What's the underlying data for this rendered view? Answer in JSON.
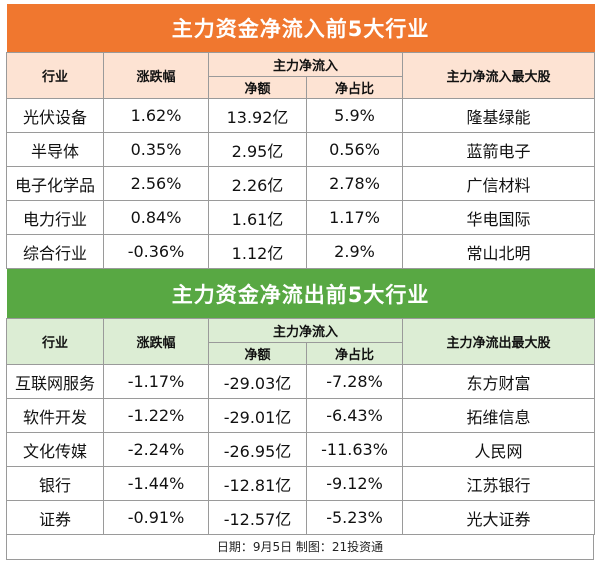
{
  "chart_data": [
    {
      "type": "table",
      "title": "主力资金净流入前5大行业",
      "headers": {
        "industry": "行业",
        "change": "涨跌幅",
        "group": "主力净流入",
        "net": "净额",
        "ratio": "净占比",
        "top_stock": "主力净流入最大股"
      },
      "rows": [
        {
          "industry": "光伏设备",
          "change": "1.62%",
          "net": "13.92亿",
          "ratio": "5.9%",
          "top_stock": "隆基绿能"
        },
        {
          "industry": "半导体",
          "change": "0.35%",
          "net": "2.95亿",
          "ratio": "0.56%",
          "top_stock": "蓝箭电子"
        },
        {
          "industry": "电子化学品",
          "change": "2.56%",
          "net": "2.26亿",
          "ratio": "2.78%",
          "top_stock": "广信材料"
        },
        {
          "industry": "电力行业",
          "change": "0.84%",
          "net": "1.61亿",
          "ratio": "1.17%",
          "top_stock": "华电国际"
        },
        {
          "industry": "综合行业",
          "change": "-0.36%",
          "net": "1.12亿",
          "ratio": "2.9%",
          "top_stock": "常山北明"
        }
      ]
    },
    {
      "type": "table",
      "title": "主力资金净流出前5大行业",
      "headers": {
        "industry": "行业",
        "change": "涨跌幅",
        "group": "主力净流入",
        "net": "净额",
        "ratio": "净占比",
        "top_stock": "主力净流出最大股"
      },
      "rows": [
        {
          "industry": "互联网服务",
          "change": "-1.17%",
          "net": "-29.03亿",
          "ratio": "-7.28%",
          "top_stock": "东方财富"
        },
        {
          "industry": "软件开发",
          "change": "-1.22%",
          "net": "-29.01亿",
          "ratio": "-6.43%",
          "top_stock": "拓维信息"
        },
        {
          "industry": "文化传媒",
          "change": "-2.24%",
          "net": "-26.95亿",
          "ratio": "-11.63%",
          "top_stock": "人民网"
        },
        {
          "industry": "银行",
          "change": "-1.44%",
          "net": "-12.81亿",
          "ratio": "-9.12%",
          "top_stock": "江苏银行"
        },
        {
          "industry": "证券",
          "change": "-0.91%",
          "net": "-12.57亿",
          "ratio": "-5.23%",
          "top_stock": "光大证券"
        }
      ]
    }
  ],
  "footer": "日期：9月5日 制图：21投资通",
  "colors": {
    "inflow_banner": "#f0772f",
    "outflow_banner": "#58a843",
    "inflow_header": "#fde3d3",
    "outflow_header": "#dcedd4"
  }
}
